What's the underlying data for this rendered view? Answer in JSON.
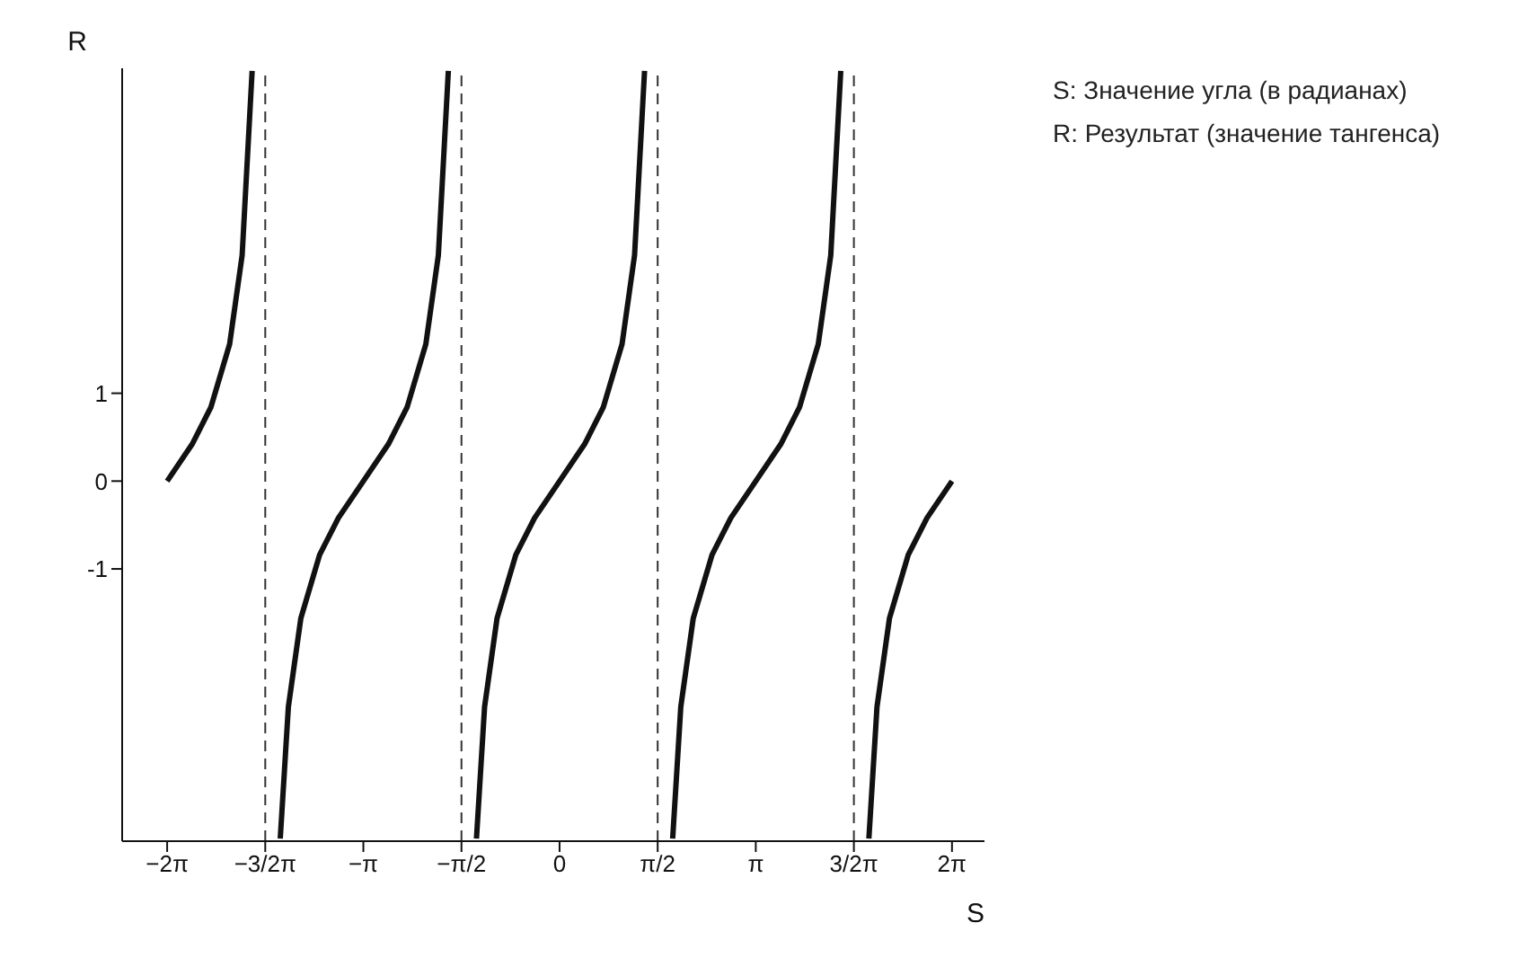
{
  "chart_data": {
    "type": "line",
    "xlabel": "S",
    "ylabel": "R",
    "annotations": [
      "S: Значение угла (в радианах)",
      "R: Результат (значение тангенса)"
    ],
    "xlim": [
      -7.0,
      6.8
    ],
    "ylim": [
      -4.1,
      4.7
    ],
    "xticks": [
      {
        "value": -6.28,
        "label": "−2π"
      },
      {
        "value": -4.71,
        "label": "−3/2π"
      },
      {
        "value": -3.14,
        "label": "−π"
      },
      {
        "value": -1.57,
        "label": "−π/2"
      },
      {
        "value": 0,
        "label": "0"
      },
      {
        "value": 1.57,
        "label": "π/2"
      },
      {
        "value": 3.14,
        "label": "π"
      },
      {
        "value": 4.71,
        "label": "3/2π"
      },
      {
        "value": 6.28,
        "label": "2π"
      }
    ],
    "yticks": [
      -1,
      0,
      1
    ],
    "marker": "none",
    "line_style": "solid",
    "series": [
      {
        "color": "#111111",
        "x": [
          -6.28,
          -5.88,
          -5.58,
          -5.28,
          -5.08,
          -4.92,
          -4.71,
          -4.47,
          -4.34,
          -4.14,
          -3.84,
          -3.54,
          -3.14,
          -2.74,
          -2.44,
          -2.14,
          -1.94,
          -1.78,
          -1.57,
          -1.33,
          -1.2,
          -1.0,
          -0.7,
          -0.4,
          0,
          0.4,
          0.7,
          1.0,
          1.2,
          1.36,
          1.57,
          1.81,
          1.94,
          2.14,
          2.44,
          2.74,
          3.14,
          3.54,
          3.84,
          4.14,
          4.34,
          4.5,
          4.71,
          4.95,
          5.08,
          5.28,
          5.58,
          5.88,
          6.28
        ],
        "values": [
          0,
          0.42,
          0.84,
          1.56,
          2.57,
          4.67,
          null,
          -4.07,
          -2.57,
          -1.56,
          -0.84,
          -0.42,
          0,
          0.42,
          0.84,
          1.56,
          2.57,
          4.67,
          null,
          -4.07,
          -2.57,
          -1.56,
          -0.84,
          -0.42,
          0,
          0.42,
          0.84,
          1.56,
          2.57,
          4.67,
          null,
          -4.07,
          -2.57,
          -1.56,
          -0.84,
          -0.42,
          0,
          0.42,
          0.84,
          1.56,
          2.57,
          4.67,
          null,
          -4.07,
          -2.57,
          -1.56,
          -0.84,
          -0.42,
          0
        ]
      }
    ],
    "ref_lines": [
      {
        "axis": "x",
        "value": -4.71,
        "line_style": "dashed",
        "color": "#333333"
      },
      {
        "axis": "x",
        "value": -1.57,
        "line_style": "dashed",
        "color": "#333333"
      },
      {
        "axis": "x",
        "value": 1.57,
        "line_style": "dashed",
        "color": "#333333"
      },
      {
        "axis": "x",
        "value": 4.71,
        "line_style": "dashed",
        "color": "#333333"
      }
    ]
  }
}
